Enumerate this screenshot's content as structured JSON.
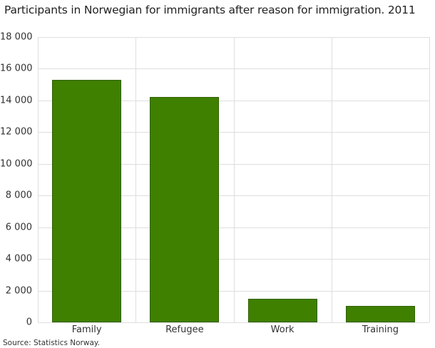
{
  "title": "Participants in Norwegian for immigrants after reason for immigration. 2011",
  "source": "Source: Statistics Norway.",
  "y_ticks": [
    "0",
    "2 000",
    "4 000",
    "6 000",
    "8 000",
    "10 000",
    "12 000",
    "14 000",
    "16 000",
    "18 000"
  ],
  "colors": {
    "bar": "#3f8000",
    "bar_border": "#2f5f00",
    "grid": "#dedede"
  },
  "chart_data": {
    "type": "bar",
    "title": "Participants in Norwegian for immigrants after reason for immigration. 2011",
    "categories": [
      "Family",
      "Refugee",
      "Work",
      "Training"
    ],
    "values": [
      15320,
      14240,
      1490,
      1040
    ],
    "xlabel": "",
    "ylabel": "",
    "ylim": [
      0,
      18000
    ],
    "yticks": [
      0,
      2000,
      4000,
      6000,
      8000,
      10000,
      12000,
      14000,
      16000,
      18000
    ],
    "grid": true,
    "legend": null,
    "source": "Source: Statistics Norway."
  }
}
